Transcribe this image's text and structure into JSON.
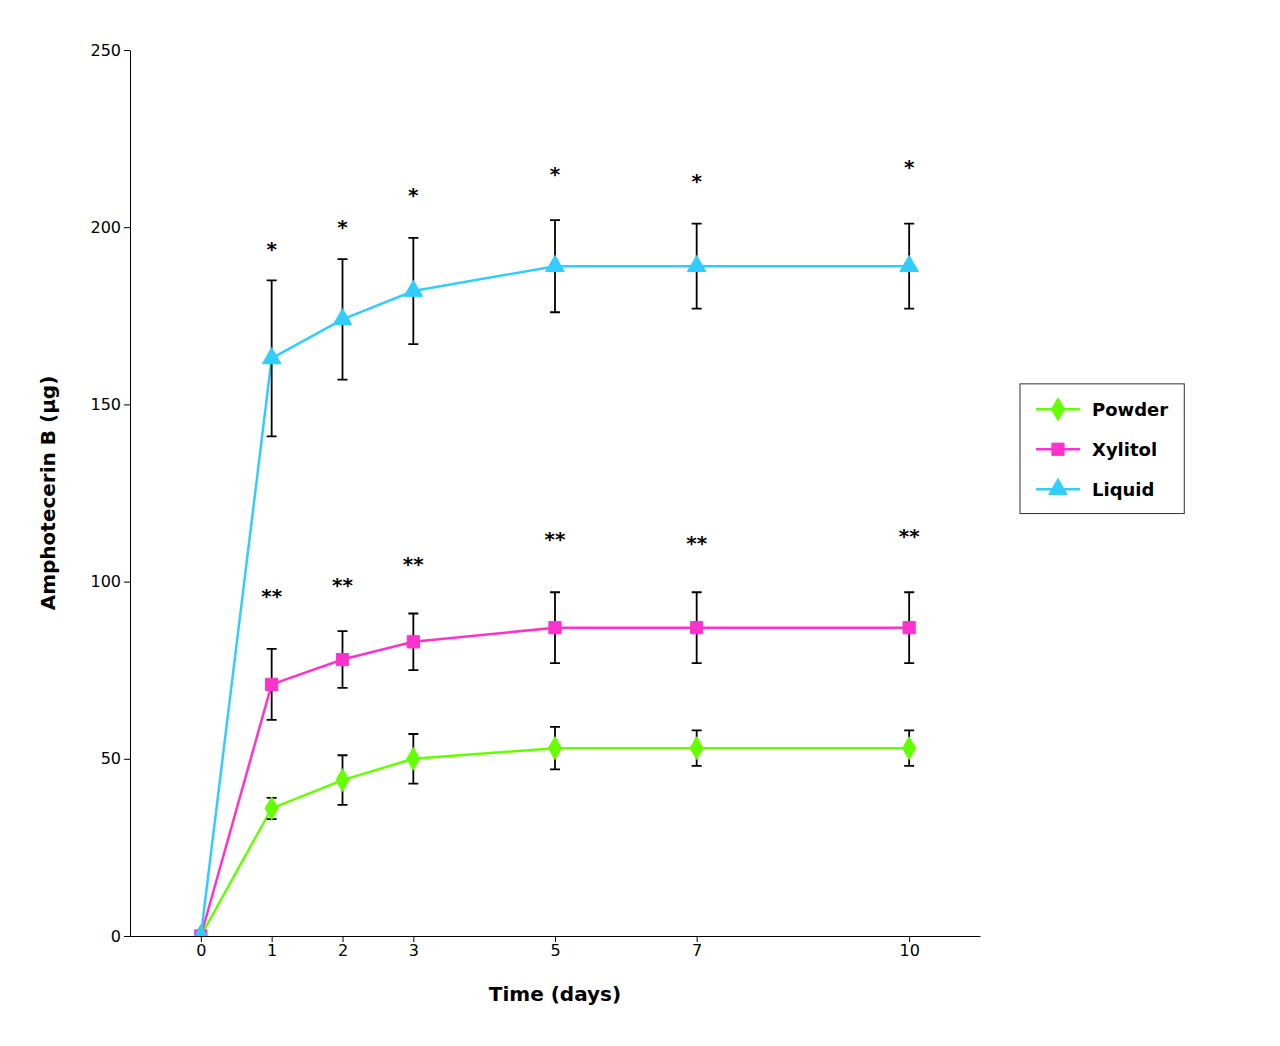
{
  "chart_data": {
    "type": "line",
    "xlabel": "Time (days)",
    "ylabel": "Amphotecerin B (μg)",
    "x": [
      0,
      1,
      2,
      3,
      5,
      7,
      10
    ],
    "xlim": [
      -1,
      11
    ],
    "xticks": [
      0,
      1,
      2,
      3,
      5,
      7,
      10
    ],
    "ylim": [
      0,
      250
    ],
    "yticks": [
      0,
      50,
      100,
      150,
      200,
      250
    ],
    "grid": false,
    "legend": "right",
    "series": [
      {
        "name": "Powder",
        "color": "#66FF00",
        "marker": "diamond",
        "values": [
          0,
          36,
          44,
          50,
          53,
          53,
          53
        ],
        "errors": [
          0,
          3,
          7,
          7,
          6,
          5,
          5
        ]
      },
      {
        "name": "Xylitol",
        "color": "#FF33CC",
        "marker": "square",
        "values": [
          0,
          71,
          78,
          83,
          87,
          87,
          87
        ],
        "errors": [
          0,
          10,
          8,
          8,
          10,
          10,
          10
        ]
      },
      {
        "name": "Liquid",
        "color": "#33CCFF",
        "marker": "triangle",
        "values": [
          0,
          163,
          174,
          182,
          189,
          189,
          189
        ],
        "errors": [
          0,
          22,
          17,
          15,
          13,
          12,
          12
        ]
      }
    ],
    "annotations": [
      {
        "text": "*",
        "x": 1,
        "y": 192
      },
      {
        "text": "*",
        "x": 2,
        "y": 198
      },
      {
        "text": "*",
        "x": 3,
        "y": 207
      },
      {
        "text": "*",
        "x": 5,
        "y": 213
      },
      {
        "text": "*",
        "x": 7,
        "y": 211
      },
      {
        "text": "*",
        "x": 10,
        "y": 215
      },
      {
        "text": "**",
        "x": 1,
        "y": 94
      },
      {
        "text": "**",
        "x": 2,
        "y": 97
      },
      {
        "text": "**",
        "x": 3,
        "y": 103
      },
      {
        "text": "**",
        "x": 5,
        "y": 110
      },
      {
        "text": "**",
        "x": 7,
        "y": 109
      },
      {
        "text": "**",
        "x": 10,
        "y": 111
      }
    ]
  }
}
